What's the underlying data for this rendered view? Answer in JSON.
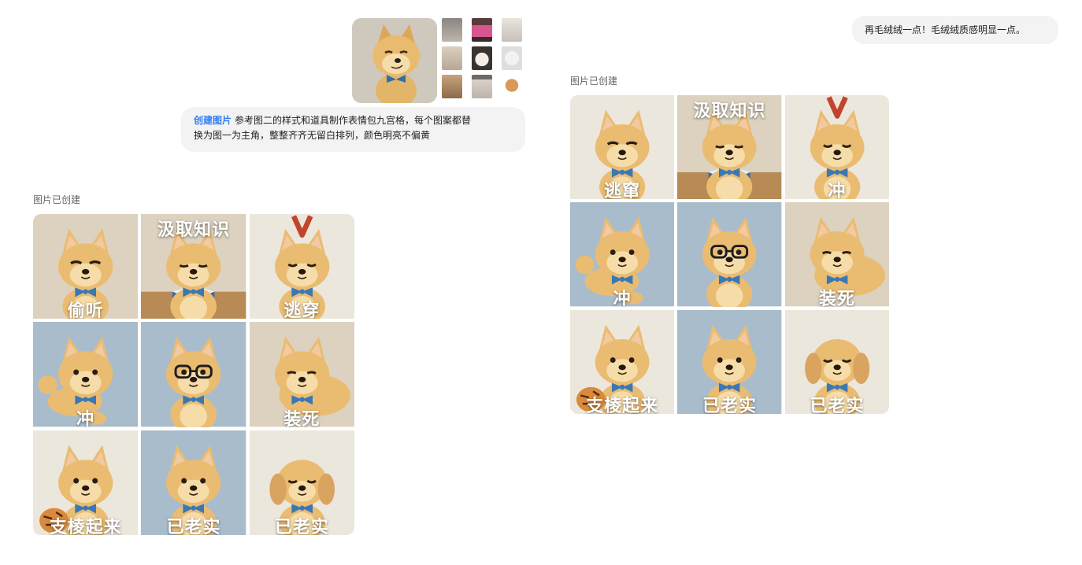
{
  "colors": {
    "accent": "#2e7cf6",
    "bubble_bg": "#f3f3f3",
    "fur": "#e9bc72",
    "fur_light": "#f6dca8",
    "bowtie": "#3a78b5",
    "bg_blue": "#a9bccb",
    "bg_beige": "#ddd2bf",
    "bg_cream": "#ece7dc"
  },
  "left": {
    "attachments": {
      "main_icon": "shiba-figurine-reference",
      "thumbs": [
        "cat-meme",
        "pink-creature-meme",
        "white-cat-meme",
        "cat-meme",
        "white-kitten-meme",
        "glasses-dog-meme",
        "orange-cat-meme",
        "cat-photo-meme",
        "small-dog-meme"
      ]
    },
    "prompt": {
      "tag": "创建图片",
      "line1": "参考图二的样式和道具制作表情包九宫格，每个图案都替",
      "line2": "换为图一为主角，整整齐齐无留白排列，颜色明亮不偏黄"
    },
    "created_label": "图片已创建",
    "cells": [
      {
        "caption": "偷听",
        "pose": "smirk",
        "bg": "beige"
      },
      {
        "caption": "汲取知识",
        "pose": "read",
        "bg": "beige"
      },
      {
        "caption": "逃穿",
        "pose": "hang",
        "bg": "cream"
      },
      {
        "caption": "冲",
        "pose": "run",
        "bg": "blue"
      },
      {
        "caption": "",
        "pose": "glasses",
        "bg": "blue"
      },
      {
        "caption": "装死",
        "pose": "lie",
        "bg": "beige"
      },
      {
        "caption": "支棱起来",
        "pose": "tiger",
        "bg": "cream"
      },
      {
        "caption": "已老实",
        "pose": "sit",
        "bg": "blue"
      },
      {
        "caption": "已老实",
        "pose": "puppy",
        "bg": "cream"
      }
    ]
  },
  "right": {
    "prompt": {
      "text": "再毛绒绒一点！毛绒绒质感明显一点。"
    },
    "created_label": "图片已创建",
    "cells": [
      {
        "caption": "逃窜",
        "pose": "smirk",
        "bg": "cream"
      },
      {
        "caption": "汲取知识",
        "pose": "read",
        "bg": "beige"
      },
      {
        "caption": "冲",
        "pose": "hang",
        "bg": "cream"
      },
      {
        "caption": "冲",
        "pose": "run",
        "bg": "blue"
      },
      {
        "caption": "",
        "pose": "glasses",
        "bg": "blue"
      },
      {
        "caption": "装死",
        "pose": "lie",
        "bg": "beige"
      },
      {
        "caption": "支棱起来",
        "pose": "tiger",
        "bg": "cream"
      },
      {
        "caption": "已老实",
        "pose": "sit",
        "bg": "blue"
      },
      {
        "caption": "已老实",
        "pose": "puppy",
        "bg": "cream"
      }
    ]
  }
}
